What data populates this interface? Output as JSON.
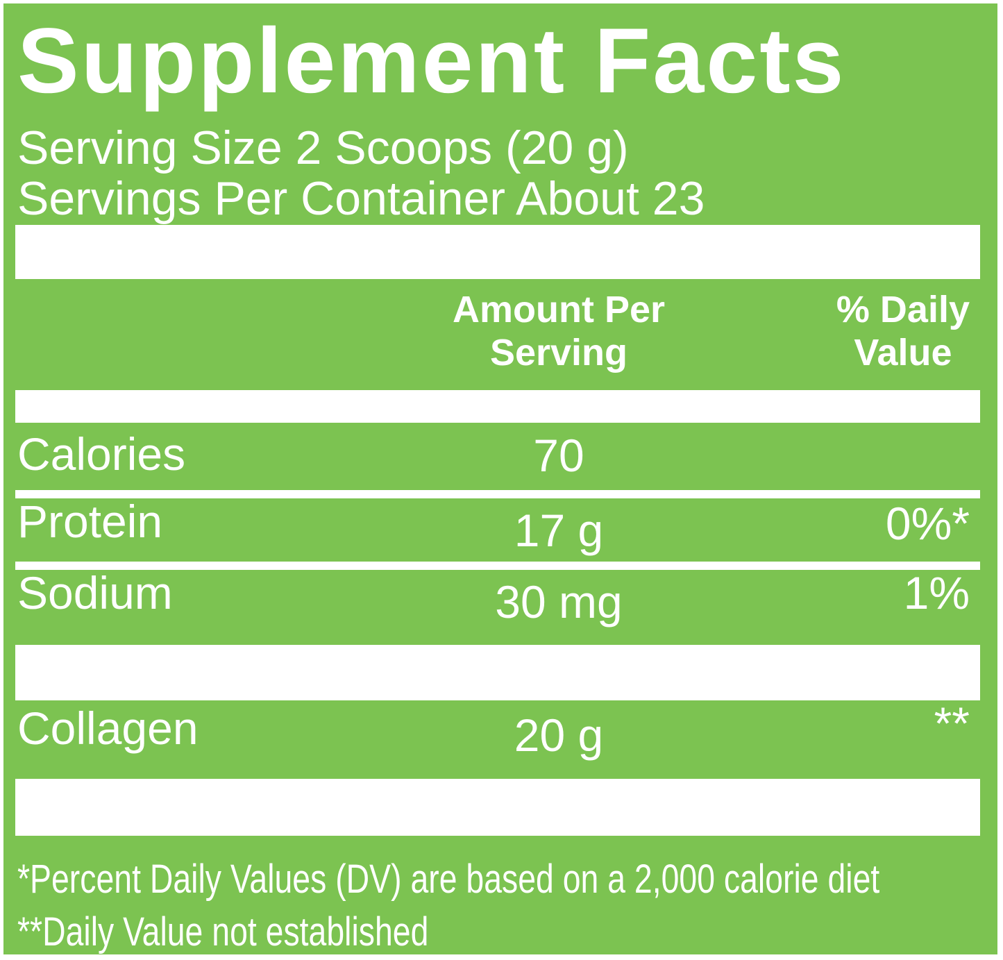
{
  "colors": {
    "green": "#7cc351",
    "text": "#ffffff"
  },
  "panel": {
    "title": "Supplement Facts",
    "serving_size": "Serving Size 2 Scoops (20 g)",
    "servings_per_container": "Servings Per Container About 23",
    "column_headers": {
      "amount_line1": "Amount Per",
      "amount_line2": "Serving",
      "dv_line1": "% Daily",
      "dv_line2": "Value"
    },
    "rows": [
      {
        "name": "Calories",
        "amount": "70",
        "dv": ""
      },
      {
        "name": "Protein",
        "amount": "17 g",
        "dv": "0%*"
      },
      {
        "name": "Sodium",
        "amount": "30 mg",
        "dv": "1%"
      },
      {
        "name": "Collagen",
        "amount": "20 g",
        "dv": "**"
      }
    ],
    "footnotes": [
      "*Percent Daily Values (DV) are based on a 2,000 calorie diet",
      "**Daily Value not established"
    ]
  }
}
